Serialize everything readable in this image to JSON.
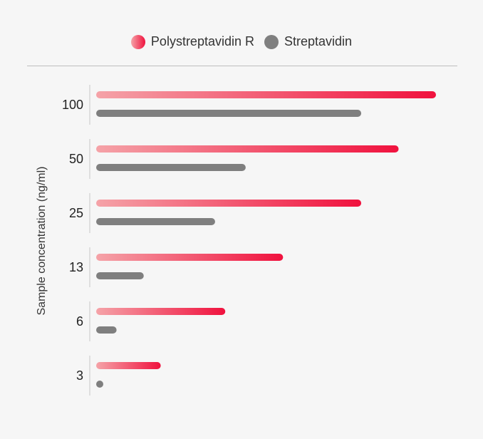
{
  "legend": {
    "series_a": "Polystreptavidin R",
    "series_b": "Streptavidin"
  },
  "colors": {
    "series_a_start": "#f5a3a8",
    "series_a_end": "#f0123e",
    "series_b": "#7f7f7f",
    "axis": "#c8c8c8",
    "background": "#f6f6f6"
  },
  "chart_data": {
    "type": "bar",
    "orientation": "horizontal",
    "title": "",
    "xlabel": "",
    "ylabel": "Sample concentration (ng/ml)",
    "categories": [
      "100",
      "50",
      "25",
      "13",
      "6",
      "3"
    ],
    "series": [
      {
        "name": "Polystreptavidin R",
        "values": [
          100,
          89,
          78,
          55,
          38,
          19
        ]
      },
      {
        "name": "Streptavidin",
        "values": [
          78,
          44,
          35,
          14,
          6,
          1
        ]
      }
    ],
    "xlim": [
      0,
      100
    ],
    "grid": false,
    "legend_position": "top-center"
  }
}
